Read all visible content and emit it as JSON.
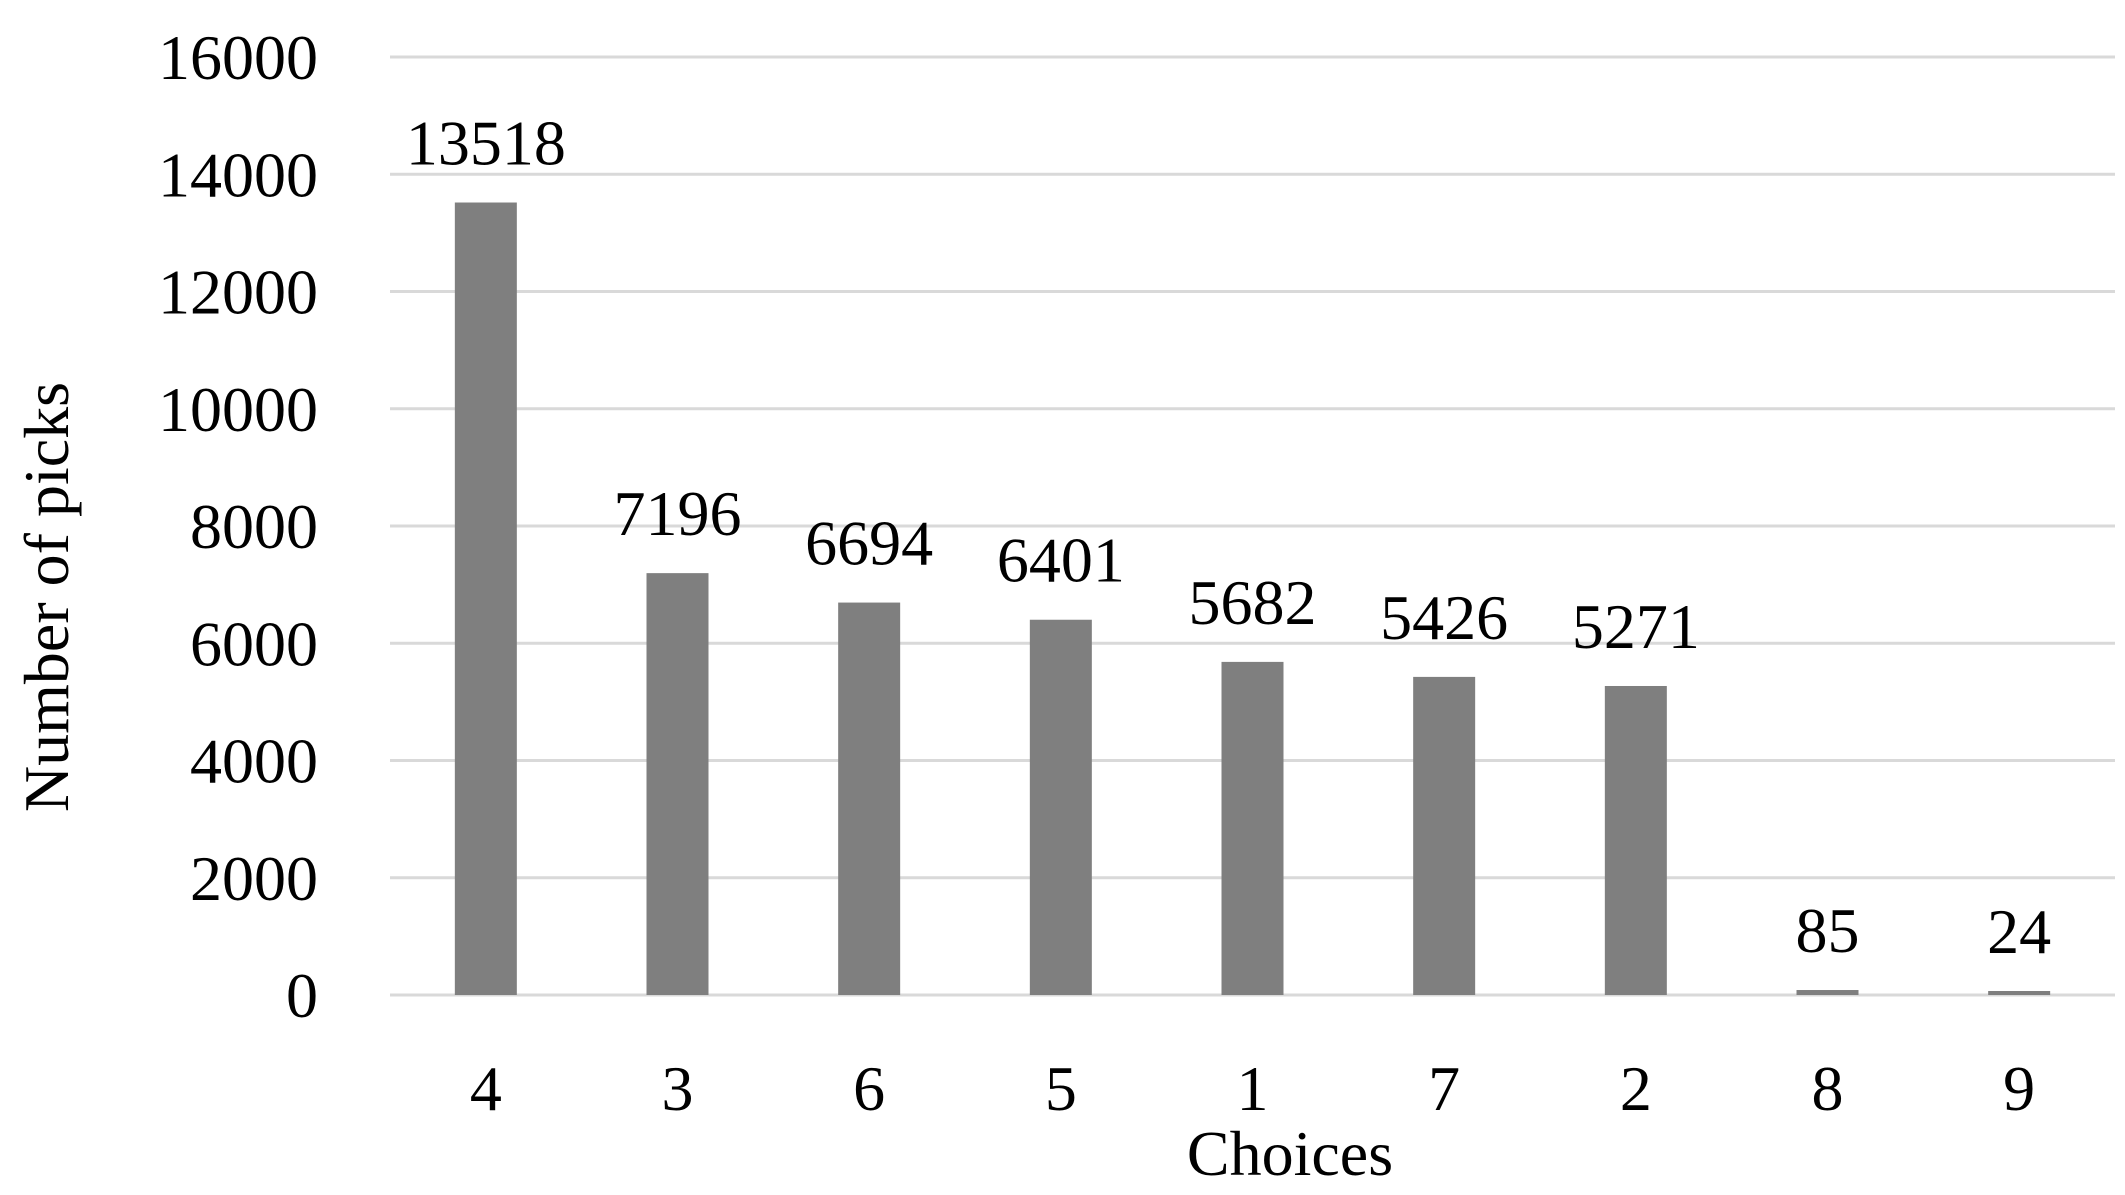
{
  "chart_data": {
    "type": "bar",
    "title": "",
    "xlabel": "Choices",
    "ylabel": "Number of picks",
    "categories": [
      "4",
      "3",
      "6",
      "5",
      "1",
      "7",
      "2",
      "8",
      "9"
    ],
    "values": [
      13518,
      7196,
      6694,
      6401,
      5682,
      5426,
      5271,
      85,
      24
    ],
    "ylim": [
      0,
      16000
    ],
    "yticks": [
      0,
      2000,
      4000,
      6000,
      8000,
      10000,
      12000,
      14000,
      16000
    ],
    "grid": true,
    "legend": "none",
    "bar_color": "#7f7f7f",
    "grid_color": "#d9d9d9"
  }
}
